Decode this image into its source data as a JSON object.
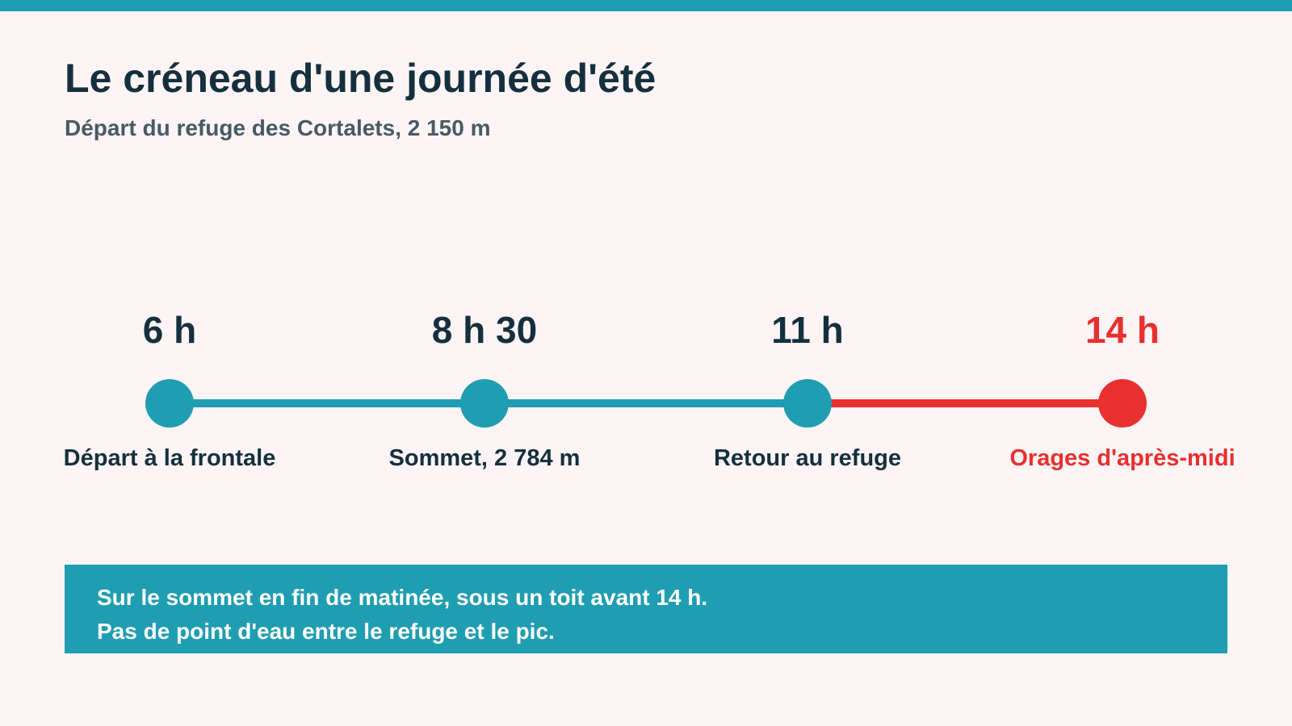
{
  "colors": {
    "accent": "#1f9db1",
    "danger": "#e8302f",
    "text": "#15303d",
    "background": "#fdf4f6"
  },
  "header": {
    "title": "Le créneau d'une journée d'été",
    "subtitle": "Départ du refuge des Cortalets, 2 150 m"
  },
  "timeline": {
    "milestones": [
      {
        "time": "6 h",
        "label": "Départ à la frontale",
        "status": "normal"
      },
      {
        "time": "8 h 30",
        "label": "Sommet, 2 784 m",
        "status": "normal"
      },
      {
        "time": "11 h",
        "label": "Retour au refuge",
        "status": "normal"
      },
      {
        "time": "14 h",
        "label": "Orages d'après-midi",
        "status": "danger"
      }
    ],
    "segments": [
      {
        "status": "normal"
      },
      {
        "status": "normal"
      },
      {
        "status": "danger"
      }
    ]
  },
  "note": {
    "lines": [
      "Sur le sommet en fin de matinée, sous un toit avant 14 h.",
      "Pas de point d'eau entre le refuge et le pic."
    ]
  }
}
